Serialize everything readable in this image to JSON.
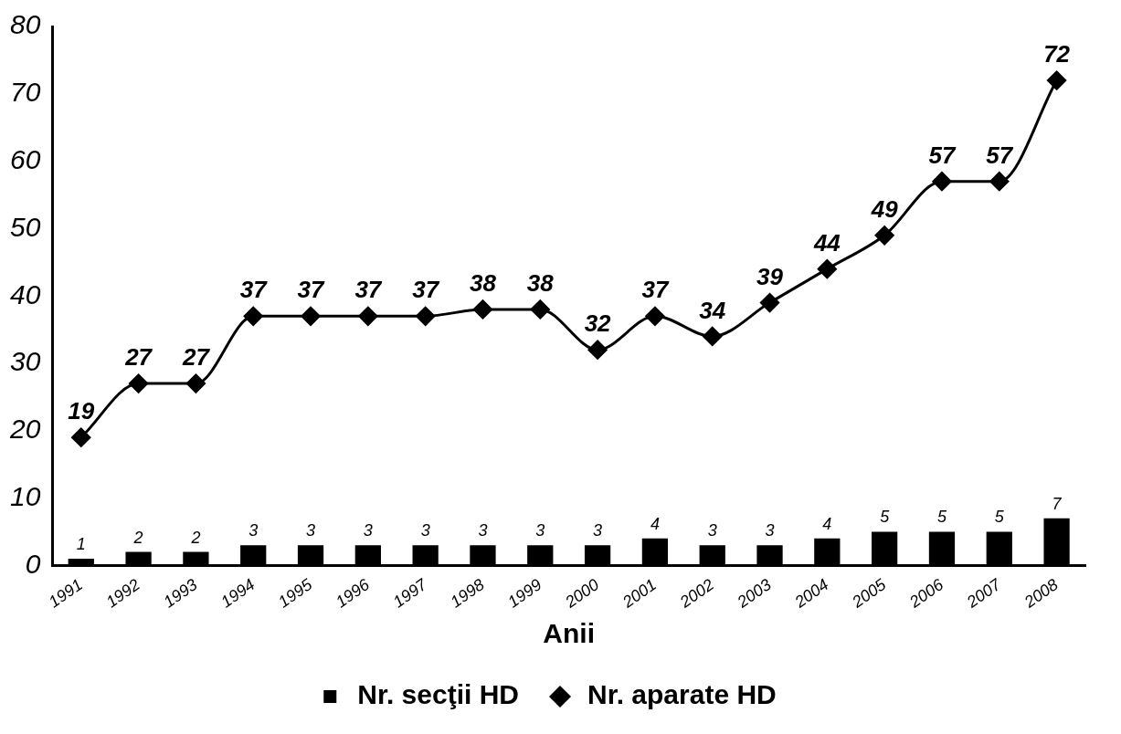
{
  "chart_data": {
    "type": "bar",
    "xlabel": "Anii",
    "categories": [
      "1991",
      "1992",
      "1993",
      "1994",
      "1995",
      "1996",
      "1997",
      "1998",
      "1999",
      "2000",
      "2001",
      "2002",
      "2003",
      "2004",
      "2005",
      "2006",
      "2007",
      "2008"
    ],
    "series": [
      {
        "name": "Nr. secţii HD",
        "color": "#000000",
        "values": [
          1,
          2,
          2,
          3,
          3,
          3,
          3,
          3,
          3,
          3,
          4,
          3,
          3,
          4,
          5,
          5,
          5,
          7
        ]
      },
      {
        "name": "Nr. aparate HD",
        "type": "line",
        "color": "#000000",
        "marker": "diamond",
        "values": [
          19,
          27,
          27,
          37,
          37,
          37,
          37,
          38,
          38,
          32,
          37,
          34,
          39,
          44,
          49,
          57,
          57,
          72
        ]
      }
    ],
    "ylim": [
      0,
      80
    ],
    "yticks": [
      0,
      10,
      20,
      30,
      40,
      50,
      60,
      70,
      80
    ],
    "grid": false,
    "legend": "bottom",
    "data_labels": true
  }
}
